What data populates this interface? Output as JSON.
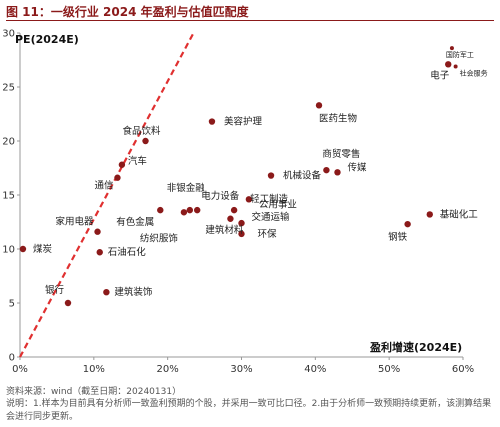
{
  "figure_title": "图 11：一级行业 2024 年盈利与估值匹配度",
  "source": "资料来源：wind（截至日期：20240131）",
  "note": "说明：1.样本为目前具有分析师一致盈利预期的个股，并采用一致可比口径。2.由于分析师一致预期持续更新，该测算结果会进行同步更新。",
  "colors": {
    "point": "#8b1a1a",
    "line": "#e03030",
    "title": "#8b1a1a",
    "axis": "#999999"
  },
  "chart_data": {
    "type": "scatter",
    "title": "",
    "xlabel": "盈利增速(2024E)",
    "ylabel": "PE(2024E)",
    "xlim": [
      0,
      0.6
    ],
    "ylim": [
      0,
      30
    ],
    "xticks": [
      0,
      0.1,
      0.2,
      0.3,
      0.4,
      0.5,
      0.6
    ],
    "xtick_labels": [
      "0%",
      "10%",
      "20%",
      "30%",
      "40%",
      "50%",
      "60%"
    ],
    "yticks": [
      0,
      5,
      10,
      15,
      20,
      25,
      30
    ],
    "ytick_labels": [
      "0",
      "5",
      "10",
      "15",
      "20",
      "25",
      "30"
    ],
    "grid": false,
    "reference_line": {
      "style": "dashed",
      "from": [
        0,
        0
      ],
      "to": [
        0.235,
        30
      ]
    },
    "points": [
      {
        "label": "煤炭",
        "x": 0.004,
        "y": 10.0
      },
      {
        "label": "银行",
        "x": 0.065,
        "y": 5.0
      },
      {
        "label": "家用电器",
        "x": 0.105,
        "y": 11.6
      },
      {
        "label": "石油石化",
        "x": 0.108,
        "y": 9.7
      },
      {
        "label": "建筑装饰",
        "x": 0.117,
        "y": 6.0
      },
      {
        "label": "通信",
        "x": 0.132,
        "y": 16.6
      },
      {
        "label": "汽车",
        "x": 0.138,
        "y": 17.8
      },
      {
        "label": "食品饮料",
        "x": 0.17,
        "y": 20.0
      },
      {
        "label": "有色金属",
        "x": 0.19,
        "y": 13.6
      },
      {
        "label": "纺织服饰",
        "x": 0.222,
        "y": 13.4
      },
      {
        "label": "非银金融",
        "x": 0.23,
        "y": 13.6
      },
      {
        "label": "电力设备",
        "x": 0.24,
        "y": 13.6
      },
      {
        "label": "美容护理",
        "x": 0.26,
        "y": 21.8
      },
      {
        "label": "建筑材料",
        "x": 0.285,
        "y": 12.8
      },
      {
        "label": "轻工制造",
        "x": 0.29,
        "y": 13.6
      },
      {
        "label": "交通运输",
        "x": 0.3,
        "y": 12.4
      },
      {
        "label": "环保",
        "x": 0.3,
        "y": 11.4
      },
      {
        "label": "公用事业",
        "x": 0.31,
        "y": 14.6
      },
      {
        "label": "机械设备",
        "x": 0.34,
        "y": 16.8
      },
      {
        "label": "医药生物",
        "x": 0.405,
        "y": 23.3
      },
      {
        "label": "商贸零售",
        "x": 0.415,
        "y": 17.3
      },
      {
        "label": "传媒",
        "x": 0.43,
        "y": 17.1
      },
      {
        "label": "钢铁",
        "x": 0.525,
        "y": 12.3
      },
      {
        "label": "基础化工",
        "x": 0.555,
        "y": 13.2
      },
      {
        "label": "电子",
        "x": 0.58,
        "y": 27.1
      },
      {
        "label": "国防军工",
        "x": 0.585,
        "y": 28.6
      },
      {
        "label": "社会服务",
        "x": 0.59,
        "y": 26.9
      }
    ]
  }
}
